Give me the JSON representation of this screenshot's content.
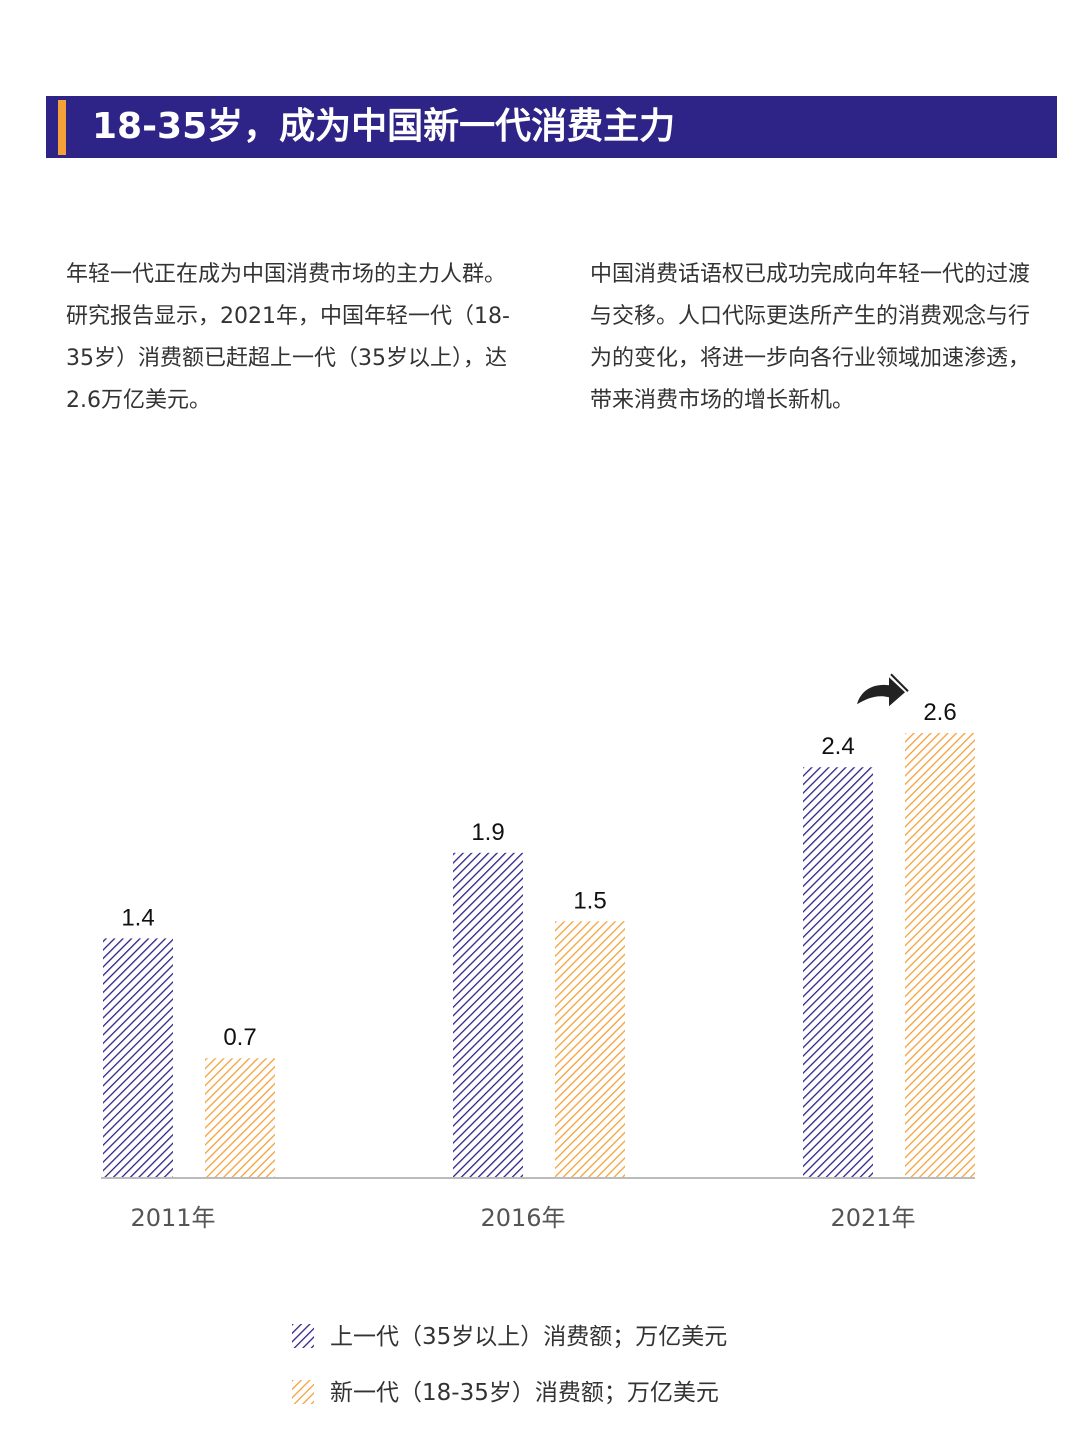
{
  "header": {
    "title": "18-35岁，成为中国新一代消费主力"
  },
  "intro": {
    "left": "年轻一代正在成为中国消费市场的主力人群。研究报告显示，2021年，中国年轻一代（18-35岁）消费额已赶超上一代（35岁以上），达2.6万亿美元。",
    "right": "中国消费话语权已成功完成向年轻一代的过渡与交移。人口代际更迭所产生的消费观念与行为的变化，将进一步向各行业领域加速渗透，带来消费市场的增长新机。"
  },
  "colors": {
    "header_bg": "#2e2386",
    "header_accent": "#f4a13a",
    "series_old": "#2e2386",
    "series_new": "#f4a13a"
  },
  "icons": {
    "trend": "curved-up-arrow-icon"
  },
  "chart_data": {
    "type": "bar",
    "categories": [
      "2011年",
      "2016年",
      "2021年"
    ],
    "series": [
      {
        "name": "上一代（35岁以上）消费额；万亿美元",
        "values": [
          1.4,
          1.9,
          2.4
        ],
        "labels": [
          "1.4",
          "1.9",
          "2.4"
        ],
        "pattern": "diagonal-hatch",
        "color": "#2e2386"
      },
      {
        "name": "新一代（18-35岁）消费额；万亿美元",
        "values": [
          0.7,
          1.5,
          2.6
        ],
        "labels": [
          "0.7",
          "1.5",
          "2.6"
        ],
        "pattern": "diagonal-hatch",
        "color": "#f4a13a"
      }
    ],
    "ylim": [
      0,
      2.6
    ],
    "grid": false,
    "legend_position": "bottom",
    "y_axis_visible": false
  }
}
